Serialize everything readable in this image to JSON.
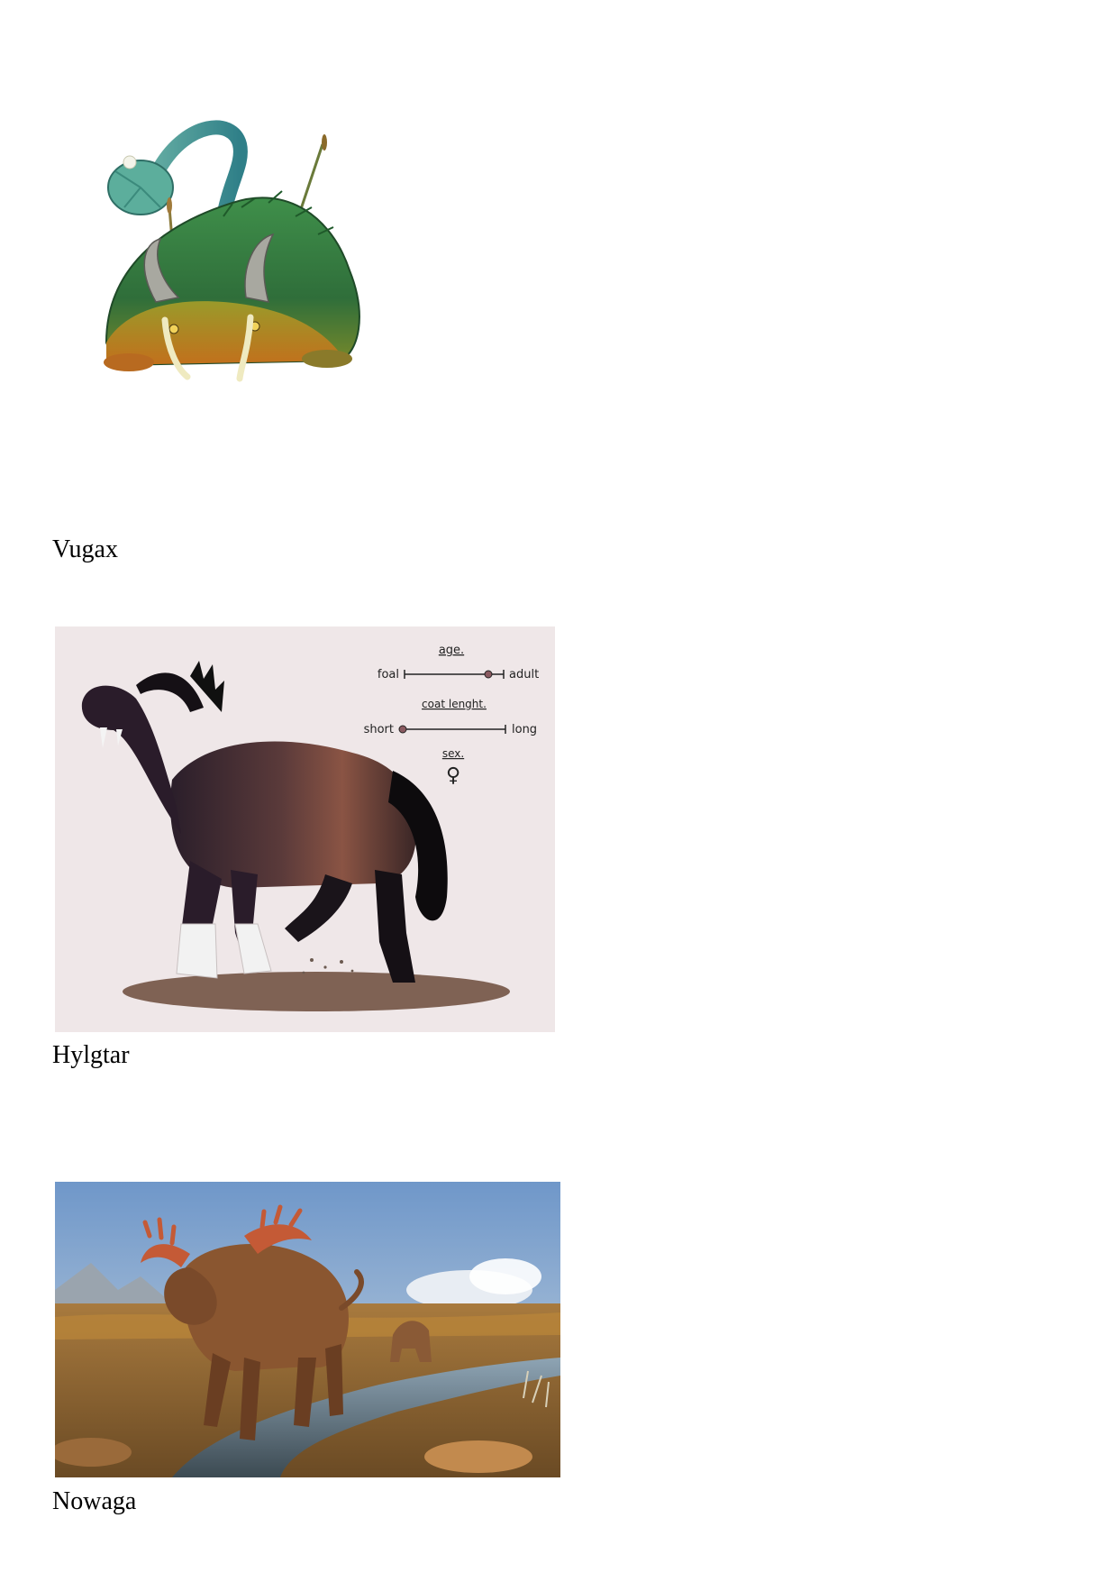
{
  "creatures": [
    {
      "name": "Vugax"
    },
    {
      "name": "Hylgtar",
      "sheet": {
        "age_label": "age.",
        "age_min": "foal",
        "age_max": "adult",
        "coat_label": "coat lenght.",
        "coat_min": "short",
        "coat_max": "long",
        "sex_label": "sex.",
        "sex_symbol": "♀"
      }
    },
    {
      "name": "Nowaga"
    }
  ]
}
